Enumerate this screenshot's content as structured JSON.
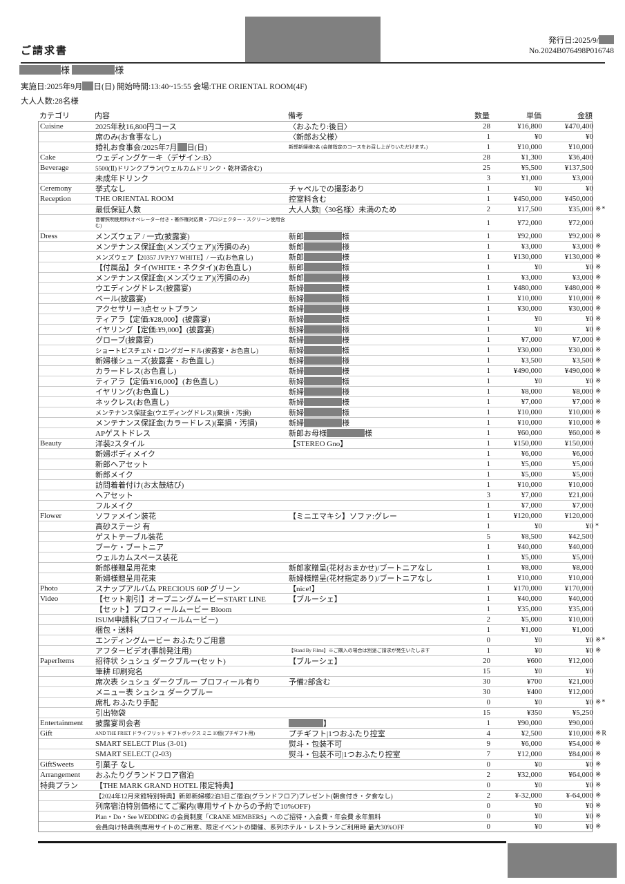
{
  "header": {
    "title": "ご請求書",
    "issue_line": "発行日:2025/9/{r:22}",
    "invoice_no": "No.2024B076498P016748",
    "names_line": "{r:60}様 {r:62}様",
    "event_line": "実施日:2025年9月{r:16}日(日) 開始時間:13:40~15:55  会場:THE ORIENTAL ROOM(4F)",
    "adults_line": "大人人数:28名様"
  },
  "table": {
    "columns": [
      "カテゴリ",
      "内容",
      "備考",
      "数量",
      "単価",
      "金額"
    ],
    "rows": [
      {
        "c": "Cuisine",
        "i": "2025年秋16,800円コース",
        "r": "〈おふたり:後日〉",
        "q": "28",
        "u": "¥16,800",
        "a": "¥470,400"
      },
      {
        "i": "席のみ(お食事なし)",
        "r": "〈新郎お父様〉",
        "q": "1",
        "u": "¥0",
        "a": "¥0"
      },
      {
        "i": "婚礼お食事会/2025年7月{r:14}日(日)",
        "r": "新郎新婦様2名 (会館指定のコースをお召し上がりいただけます。)",
        "rs": "t",
        "q": "1",
        "u": "¥10,000",
        "a": "¥10,000"
      },
      {
        "c": "Cake",
        "i": "ウェディングケーキ〈デザイン:B〉",
        "q": "28",
        "u": "¥1,300",
        "a": "¥36,400"
      },
      {
        "c": "Beverage",
        "i": "5500(Ⅱ)ドリンクプラン(ウェルカムドリンク・乾杯酒含む)",
        "is": "s",
        "q": "25",
        "u": "¥5,500",
        "a": "¥137,500"
      },
      {
        "i": "未成年ドリンク",
        "q": "3",
        "u": "¥1,000",
        "a": "¥3,000"
      },
      {
        "c": "Ceremony",
        "i": "挙式なし",
        "r": "チャペルでの撮影あり",
        "q": "1",
        "u": "¥0",
        "a": "¥0"
      },
      {
        "c": "Reception",
        "i": "THE ORIENTAL ROOM",
        "r": "控室料含む",
        "q": "1",
        "u": "¥450,000",
        "a": "¥450,000"
      },
      {
        "i": "最低保証人数",
        "r": "大人人数|〈30名様〉未満のため",
        "q": "2",
        "u": "¥17,500",
        "a": "¥35,000",
        "m": "※*"
      },
      {
        "i": "音響照明使用料(オペレーター付き・著作権対応費・プロジェクター・スクリーン使用含む)",
        "is": "t2",
        "q": "1",
        "u": "¥72,000",
        "a": "¥72,000"
      },
      {
        "c": "Dress",
        "i": "メンズウェア / 一式(披露宴)",
        "r": "新郎{r:55}様",
        "q": "1",
        "u": "¥92,000",
        "a": "¥92,000",
        "m": "※"
      },
      {
        "i": "メンテナンス保証金(メンズウェア)(汚損のみ)",
        "r": "新郎{r:55}様",
        "q": "1",
        "u": "¥3,000",
        "a": "¥3,000",
        "m": "※"
      },
      {
        "i": "メンズウェア【20357 JVP:Y7 WHITE】/ 一式(お色直し)",
        "is": "s",
        "r": "新郎{r:55}様",
        "q": "1",
        "u": "¥130,000",
        "a": "¥130,000",
        "m": "※"
      },
      {
        "i": "【付属品】タイ(WHITE・ネクタイ)(お色直し)",
        "r": "新郎{r:55}様",
        "q": "1",
        "u": "¥0",
        "a": "¥0",
        "m": "※"
      },
      {
        "i": "メンテナンス保証金(メンズウェア)(汚損のみ)",
        "r": "新郎{r:55}様",
        "q": "1",
        "u": "¥3,000",
        "a": "¥3,000",
        "m": "※"
      },
      {
        "i": "ウエディングドレス(披露宴)",
        "r": "新婦{r:55}様",
        "q": "1",
        "u": "¥480,000",
        "a": "¥480,000",
        "m": "※"
      },
      {
        "i": "ベール(披露宴)",
        "r": "新婦{r:55}様",
        "q": "1",
        "u": "¥10,000",
        "a": "¥10,000",
        "m": "※"
      },
      {
        "i": "アクセサリー3点セットプラン",
        "r": "新婦{r:55}様",
        "q": "1",
        "u": "¥30,000",
        "a": "¥30,000",
        "m": "※"
      },
      {
        "i": "ティアラ【定価:¥28,000】(披露宴)",
        "r": "新婦{r:55}様",
        "q": "1",
        "u": "¥0",
        "a": "¥0",
        "m": "※"
      },
      {
        "i": "イヤリング【定価:¥9,000】(披露宴)",
        "r": "新婦{r:55}様",
        "q": "1",
        "u": "¥0",
        "a": "¥0",
        "m": "※"
      },
      {
        "i": "グローブ(披露宴)",
        "r": "新婦{r:55}様",
        "q": "1",
        "u": "¥7,000",
        "a": "¥7,000",
        "m": "※"
      },
      {
        "i": "ショートビスチェN・ロングガードル(披露宴・お色直し)",
        "is": "s",
        "r": "新婦{r:55}様",
        "q": "1",
        "u": "¥30,000",
        "a": "¥30,000",
        "m": "※"
      },
      {
        "i": "新婦様シューズ(披露宴・お色直し)",
        "r": "新婦{r:55}様",
        "q": "1",
        "u": "¥3,500",
        "a": "¥3,500",
        "m": "※"
      },
      {
        "i": "カラードレス(お色直し)",
        "r": "新婦{r:55}様",
        "q": "1",
        "u": "¥490,000",
        "a": "¥490,000",
        "m": "※"
      },
      {
        "i": "ティアラ【定価:¥16,000】(お色直し)",
        "r": "新婦{r:55}様",
        "q": "1",
        "u": "¥0",
        "a": "¥0",
        "m": "※"
      },
      {
        "i": "イヤリング(お色直し)",
        "r": "新婦{r:55}様",
        "q": "1",
        "u": "¥8,000",
        "a": "¥8,000",
        "m": "※"
      },
      {
        "i": "ネックレス(お色直し)",
        "r": "新婦{r:55}様",
        "q": "1",
        "u": "¥7,000",
        "a": "¥7,000",
        "m": "※"
      },
      {
        "i": "メンテナンス保証金(ウエディングドレス)(棄損・汚損)",
        "is": "s",
        "r": "新婦{r:55}様",
        "q": "1",
        "u": "¥10,000",
        "a": "¥10,000",
        "m": "※"
      },
      {
        "i": "メンテナンス保証金(カラードレス)(棄損・汚損)",
        "r": "新婦{r:55}様",
        "q": "1",
        "u": "¥10,000",
        "a": "¥10,000",
        "m": "※"
      },
      {
        "i": "APゲストドレス",
        "r": "新郎お母様{r:55}様",
        "q": "1",
        "u": "¥60,000",
        "a": "¥60,000",
        "m": "※"
      },
      {
        "c": "Beauty",
        "i": "洋装2スタイル",
        "r": "【STEREO Gno】",
        "q": "1",
        "u": "¥150,000",
        "a": "¥150,000"
      },
      {
        "i": "新婦ボディメイク",
        "q": "1",
        "u": "¥6,000",
        "a": "¥6,000"
      },
      {
        "i": "新郎ヘアセット",
        "q": "1",
        "u": "¥5,000",
        "a": "¥5,000"
      },
      {
        "i": "新郎メイク",
        "q": "1",
        "u": "¥5,000",
        "a": "¥5,000"
      },
      {
        "i": "訪問着着付け(お太鼓結び)",
        "q": "1",
        "u": "¥10,000",
        "a": "¥10,000"
      },
      {
        "i": "ヘアセット",
        "q": "3",
        "u": "¥7,000",
        "a": "¥21,000"
      },
      {
        "i": "フルメイク",
        "q": "1",
        "u": "¥7,000",
        "a": "¥7,000"
      },
      {
        "c": "Flower",
        "i": "ソファメイン装花",
        "r": "【ミニエマキシ】ソファ:グレー",
        "q": "1",
        "u": "¥120,000",
        "a": "¥120,000"
      },
      {
        "i": "高砂ステージ 有",
        "q": "1",
        "u": "¥0",
        "a": "¥0",
        "m": "*"
      },
      {
        "i": "ゲストテーブル装花",
        "q": "5",
        "u": "¥8,500",
        "a": "¥42,500"
      },
      {
        "i": "ブーケ・ブートニア",
        "q": "1",
        "u": "¥40,000",
        "a": "¥40,000"
      },
      {
        "i": "ウェルカムスペース装花",
        "q": "1",
        "u": "¥5,000",
        "a": "¥5,000"
      },
      {
        "i": "新郎様贈呈用花束",
        "r": "新郎家贈呈(花材おまかせ)/ブートニアなし",
        "q": "1",
        "u": "¥8,000",
        "a": "¥8,000"
      },
      {
        "i": "新婦様贈呈用花束",
        "r": "新婦様贈呈(花材指定あり)/ブートニアなし",
        "q": "1",
        "u": "¥10,000",
        "a": "¥10,000"
      },
      {
        "c": "Photo",
        "i": "スナップアルバム PRECIOUS 60P グリーン",
        "r": "【nice!】",
        "q": "1",
        "u": "¥170,000",
        "a": "¥170,000"
      },
      {
        "c": "Video",
        "i": "【セット割引】オープニングムービーSTART LINE",
        "r": "【ブルーシェ】",
        "q": "1",
        "u": "¥40,000",
        "a": "¥40,000"
      },
      {
        "i": "【セット】プロフィールムービー Bloom",
        "q": "1",
        "u": "¥35,000",
        "a": "¥35,000"
      },
      {
        "i": "ISUM申請料(プロフィールムービー)",
        "q": "2",
        "u": "¥5,000",
        "a": "¥10,000"
      },
      {
        "i": "梱包・送料",
        "q": "1",
        "u": "¥1,000",
        "a": "¥1,000"
      },
      {
        "i": "エンディングムービー おふたりご用意",
        "q": "0",
        "u": "¥0",
        "a": "¥0",
        "m": "※*"
      },
      {
        "i": "アフタービデオ(事前発注用)",
        "r": "【Stand By Films】※ご購入の場合は別途ご請求が発生いたします",
        "rs": "t",
        "q": "1",
        "u": "¥0",
        "a": "¥0",
        "m": "※"
      },
      {
        "c": "PaperItems",
        "i": "招待状 シュシュ ダークブルー(セット)",
        "r": "【ブルーシェ】",
        "q": "20",
        "u": "¥600",
        "a": "¥12,000"
      },
      {
        "i": "筆耕 印刷宛名",
        "q": "15",
        "u": "¥0",
        "a": "¥0"
      },
      {
        "i": "席次表 シュシュ ダークブルー プロフィール有り",
        "r": "予備2部含む",
        "q": "30",
        "u": "¥700",
        "a": "¥21,000"
      },
      {
        "i": "メニュー表 シュシュ ダークブルー",
        "q": "30",
        "u": "¥400",
        "a": "¥12,000"
      },
      {
        "i": "席札 おふたり手配",
        "q": "0",
        "u": "¥0",
        "a": "¥0",
        "m": "※*"
      },
      {
        "i": "引出物袋",
        "q": "15",
        "u": "¥350",
        "a": "¥5,250"
      },
      {
        "c": "Entertainment",
        "i": "披露宴司会者",
        "r": "{r:50}】",
        "q": "1",
        "u": "¥90,000",
        "a": "¥90,000"
      },
      {
        "c": "Gift",
        "i": "AND THE FRIET ドライフリット ギフトボックス ミニ 10個(プチギフト用)",
        "is": "t",
        "r": "プチギフト|1つおふたり控室",
        "q": "4",
        "u": "¥2,500",
        "a": "¥10,000",
        "m": "※R"
      },
      {
        "i": "SMART SELECT Plus (3-01)",
        "r": "熨斗・包装不可",
        "q": "9",
        "u": "¥6,000",
        "a": "¥54,000",
        "m": "※"
      },
      {
        "i": "SMART SELECT (2-03)",
        "r": "熨斗・包装不可|1つおふたり控室",
        "q": "7",
        "u": "¥12,000",
        "a": "¥84,000",
        "m": "※"
      },
      {
        "c": "GiftSweets",
        "i": "引菓子 なし",
        "q": "0",
        "u": "¥0",
        "a": "¥0",
        "m": "※"
      },
      {
        "c": "Arrangement",
        "i": "おふたりグランドフロア宿泊",
        "q": "2",
        "u": "¥32,000",
        "a": "¥64,000",
        "m": "※"
      },
      {
        "c": "特典プラン",
        "i": "【THE MARK GRAND HOTEL 限定特典】",
        "q": "0",
        "u": "¥0",
        "a": "¥0",
        "m": "※"
      },
      {
        "i": "【2024年12月来館特別特典】新郎新婦様2泊3日ご宿泊(グランドフロア)プレゼント(朝食付き・夕食なし)",
        "is": "s",
        "q": "2",
        "u": "¥-32,000",
        "a": "¥-64,000",
        "m": "※"
      },
      {
        "i": "列席宿泊特別価格にてご案内(専用サイトからの予約で10%OFF)",
        "q": "0",
        "u": "¥0",
        "a": "¥0",
        "m": "※"
      },
      {
        "i": "Plan・Do・See WEDDING の会員制度「CRANE MEMBERS」へのご招待・入会費・年会費 永年無料",
        "is": "s",
        "q": "0",
        "u": "¥0",
        "a": "¥0",
        "m": "※"
      },
      {
        "i": "会員向け特典例|専用サイトのご用意、限定イベントの開催、系列ホテル・レストランご利用時 最大30%OFF",
        "is": "s",
        "q": "0",
        "u": "¥0",
        "a": "¥0",
        "m": "※"
      }
    ]
  }
}
